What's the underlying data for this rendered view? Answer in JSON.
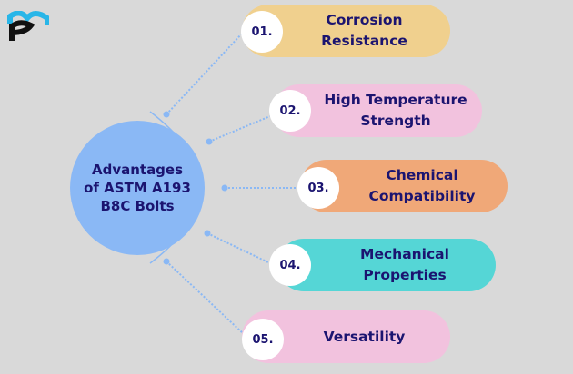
{
  "logo": {
    "text": "pm",
    "colors": {
      "top": "#29b6e8",
      "bottom": "#111111"
    }
  },
  "center": {
    "title": "Advantages\nof ASTM A193\nB8C Bolts",
    "color": "#8ab8f5"
  },
  "items": [
    {
      "number": "01.",
      "label": "Corrosion\nResistance",
      "color": "#f0d08e"
    },
    {
      "number": "02.",
      "label": "High Temperature\nStrength",
      "color": "#f2c2de"
    },
    {
      "number": "03.",
      "label": "Chemical\nCompatibility",
      "color": "#f0a878"
    },
    {
      "number": "04.",
      "label": "Mechanical\nProperties",
      "color": "#55d6d6"
    },
    {
      "number": "05.",
      "label": "Versatility",
      "color": "#f2c2de"
    }
  ]
}
